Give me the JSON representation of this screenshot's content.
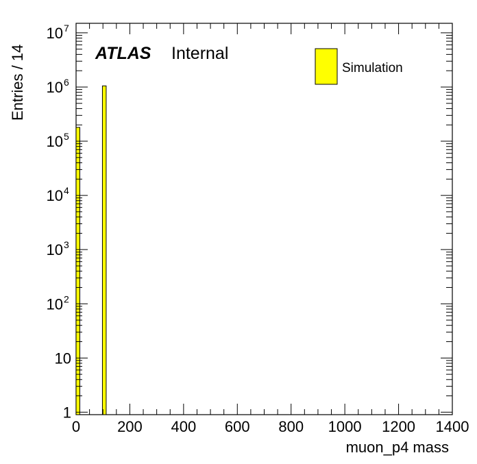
{
  "chart_data": {
    "type": "bar",
    "xlabel": "muon_p4 mass",
    "ylabel": "Entries / 14",
    "xlim": [
      0,
      1400
    ],
    "ylim": [
      0.9,
      15000000
    ],
    "yscale": "log",
    "bin_width": 14,
    "x_ticks": [
      "0",
      "200",
      "400",
      "600",
      "800",
      "1000",
      "1200",
      "1400"
    ],
    "y_ticks": [
      {
        "value": 1,
        "base": "1",
        "exp": ""
      },
      {
        "value": 10,
        "base": "10",
        "exp": ""
      },
      {
        "value": 100,
        "base": "10",
        "exp": "2"
      },
      {
        "value": 1000,
        "base": "10",
        "exp": "3"
      },
      {
        "value": 10000,
        "base": "10",
        "exp": "4"
      },
      {
        "value": 100000,
        "base": "10",
        "exp": "5"
      },
      {
        "value": 1000000,
        "base": "10",
        "exp": "6"
      },
      {
        "value": 10000000,
        "base": "10",
        "exp": "7"
      }
    ],
    "series": [
      {
        "name": "Simulation",
        "color": "#ffff00",
        "bins": [
          {
            "x0": 0,
            "x1": 14,
            "value": 180000
          },
          {
            "x0": 98,
            "x1": 112,
            "value": 1050000
          }
        ]
      }
    ],
    "experiment_label": "ATLAS",
    "experiment_status": "Internal",
    "legend_position": "top-right"
  }
}
